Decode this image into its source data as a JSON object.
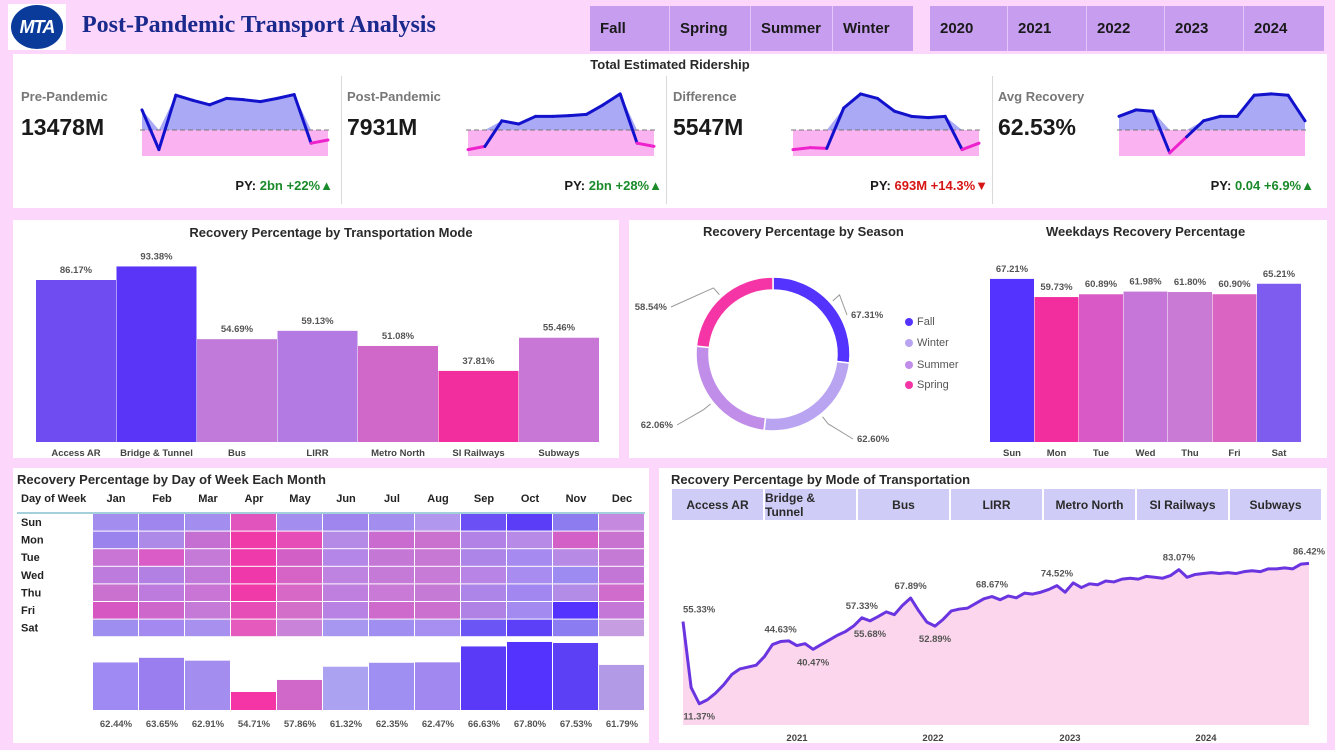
{
  "header": {
    "logo_text": "MTA",
    "title": "Post-Pandemic Transport Analysis"
  },
  "season_slicer": [
    "Fall",
    "Spring",
    "Summer",
    "Winter"
  ],
  "year_slicer": [
    "2020",
    "2021",
    "2022",
    "2023",
    "2024"
  ],
  "colors": {
    "blue": "#1212cc",
    "magenta": "#ee22cc",
    "violet": "#5533ff",
    "pink": "#f535a5",
    "up": "#1a8a2a",
    "down": "#d81515"
  },
  "kpi_section": {
    "title": "Total Estimated Ridership",
    "cards": [
      {
        "label": "Pre-Pandemic",
        "value": "13478M",
        "py_label": "PY:",
        "py_value": "2bn",
        "py_change": "+22%",
        "arrow": "▲",
        "direction": "up",
        "sparkline": [
          0.72,
          0.1,
          0.95,
          0.87,
          0.8,
          0.9,
          0.88,
          0.85,
          0.9,
          0.96,
          0.2,
          0.25
        ]
      },
      {
        "label": "Post-Pandemic",
        "value": "7931M",
        "py_label": "PY:",
        "py_value": "2bn",
        "py_change": "+28%",
        "arrow": "▲",
        "direction": "up",
        "sparkline": [
          0.1,
          0.15,
          0.55,
          0.5,
          0.62,
          0.62,
          0.63,
          0.65,
          0.8,
          0.97,
          0.2,
          0.15
        ]
      },
      {
        "label": "Difference",
        "value": "5547M",
        "py_label": "PY:",
        "py_value": "693M",
        "py_change": "+14.3%",
        "arrow": "▼",
        "direction": "down",
        "sparkline": [
          0.1,
          0.13,
          0.12,
          0.75,
          0.97,
          0.9,
          0.7,
          0.62,
          0.6,
          0.62,
          0.1,
          0.2
        ]
      },
      {
        "label": "Avg Recovery",
        "value": "62.53%",
        "py_label": "PY:",
        "py_value": "0.04",
        "py_change": "+6.9%",
        "arrow": "▲",
        "direction": "up",
        "sparkline": [
          0.62,
          0.72,
          0.7,
          0.05,
          0.3,
          0.55,
          0.62,
          0.62,
          0.95,
          0.97,
          0.95,
          0.55
        ]
      }
    ]
  },
  "chart_data": [
    {
      "id": "mode_bar",
      "type": "bar",
      "title": "Recovery Percentage by Transportation Mode",
      "categories": [
        "Access AR",
        "Bridge & Tunnel",
        "Bus",
        "LIRR",
        "Metro North",
        "SI Railways",
        "Subways"
      ],
      "values": [
        86.17,
        93.38,
        54.69,
        59.13,
        51.08,
        37.81,
        55.46
      ],
      "labels": [
        "86.17%",
        "93.38%",
        "54.69%",
        "59.13%",
        "51.08%",
        "37.81%",
        "55.46%"
      ],
      "colors": [
        "#6e4cf2",
        "#5a35f7",
        "#c17ad9",
        "#b47ae3",
        "#d068c9",
        "#f22d9d",
        "#c877d6"
      ],
      "ylim": [
        0,
        100
      ]
    },
    {
      "id": "season_donut",
      "type": "pie",
      "title": "Recovery Percentage by Season",
      "categories": [
        "Fall",
        "Winter",
        "Summer",
        "Spring"
      ],
      "values": [
        67.31,
        62.6,
        62.06,
        58.54
      ],
      "labels": [
        "67.31%",
        "62.60%",
        "62.06%",
        "58.54%"
      ],
      "colors": [
        "#5533ff",
        "#b9a4f2",
        "#c08de8",
        "#f535a5"
      ]
    },
    {
      "id": "weekday_bar",
      "type": "bar",
      "title": "Weekdays Recovery Percentage",
      "categories": [
        "Sun",
        "Mon",
        "Tue",
        "Wed",
        "Thu",
        "Fri",
        "Sat"
      ],
      "values": [
        67.21,
        59.73,
        60.89,
        61.98,
        61.8,
        60.9,
        65.21
      ],
      "labels": [
        "67.21%",
        "59.73%",
        "60.89%",
        "61.98%",
        "61.80%",
        "60.90%",
        "65.21%"
      ],
      "colors": [
        "#5533ff",
        "#f22d9d",
        "#d95ac6",
        "#c676d8",
        "#c97ad4",
        "#d964c2",
        "#7f5cf0"
      ],
      "ylim": [
        0,
        75
      ]
    },
    {
      "id": "month_heatmap",
      "type": "heatmap",
      "title": "Recovery Percentage by Day of Week Each Month",
      "corner_label": "Day of Week",
      "months": [
        "Jan",
        "Feb",
        "Mar",
        "Apr",
        "May",
        "Jun",
        "Jul",
        "Aug",
        "Sep",
        "Oct",
        "Nov",
        "Dec"
      ],
      "days": [
        "Sun",
        "Mon",
        "Tue",
        "Wed",
        "Thu",
        "Fri",
        "Sat"
      ],
      "cells": [
        [
          "#a38ef0",
          "#9f86ee",
          "#a38ef0",
          "#e154bd",
          "#a38ef0",
          "#9f86ee",
          "#a38ef0",
          "#b198ee",
          "#6a50f5",
          "#5b3cf7",
          "#8d7cf0",
          "#c58ae0"
        ],
        [
          "#9b83ee",
          "#ad8ae8",
          "#c56fd3",
          "#f03aa8",
          "#e64db6",
          "#b58ae6",
          "#c96bcf",
          "#ca70cf",
          "#b282e6",
          "#b88ae8",
          "#d260c6",
          "#c873d0"
        ],
        [
          "#c875d6",
          "#d95cc7",
          "#c67ad8",
          "#ef3aac",
          "#d25fc5",
          "#b486e8",
          "#c577d6",
          "#c777d4",
          "#ad84e8",
          "#a68af0",
          "#b78ae6",
          "#c57bd6"
        ],
        [
          "#bd7cdd",
          "#b27fe2",
          "#c17ad9",
          "#ef39ab",
          "#d564c6",
          "#be82e0",
          "#c67ad8",
          "#c77ad6",
          "#b884e6",
          "#a98cf0",
          "#9d8bf2",
          "#c476d6"
        ],
        [
          "#ca70cf",
          "#bd7cdd",
          "#c875d6",
          "#f03aa8",
          "#d868c6",
          "#bf7fdf",
          "#c97ad6",
          "#c57bd6",
          "#ad84e8",
          "#a287f0",
          "#b28ce6",
          "#d06ccb"
        ],
        [
          "#d757c2",
          "#cd67cc",
          "#c67ad8",
          "#e64db6",
          "#d36ec9",
          "#b882e4",
          "#ce6acb",
          "#cb70cf",
          "#b182e6",
          "#a28af0",
          "#5533ff",
          "#c477d6"
        ],
        [
          "#9e8ef0",
          "#a48af0",
          "#a890ee",
          "#e55bbd",
          "#c983d8",
          "#a897f0",
          "#a08ff0",
          "#a68ff0",
          "#6b55f5",
          "#5c40f7",
          "#8c7cf2",
          "#c59de0"
        ]
      ],
      "totals": [
        62.44,
        63.65,
        62.91,
        54.71,
        57.86,
        61.32,
        62.35,
        62.47,
        66.63,
        67.8,
        67.53,
        61.79
      ],
      "total_labels": [
        "62.44%",
        "63.65%",
        "62.91%",
        "54.71%",
        "57.86%",
        "61.32%",
        "62.35%",
        "62.47%",
        "66.63%",
        "67.80%",
        "67.53%",
        "61.79%"
      ],
      "total_colors": [
        "#9e8af2",
        "#9a7ef0",
        "#a38ef0",
        "#f535a5",
        "#d068c9",
        "#aba2f2",
        "#a08ff2",
        "#a088f0",
        "#5a3af7",
        "#5533ff",
        "#5c40f6",
        "#b29ae6"
      ],
      "ylim": [
        50,
        68
      ]
    },
    {
      "id": "mode_line",
      "type": "area",
      "title": "Recovery Percentage by Mode of Transportation",
      "x_labels": [
        "2021",
        "2022",
        "2023",
        "2024"
      ],
      "values": [
        55.33,
        20.0,
        11.37,
        13.5,
        17.0,
        21.5,
        27.0,
        30.0,
        31.0,
        32.0,
        36.5,
        43.0,
        44.63,
        45.0,
        42.5,
        43.5,
        40.47,
        43.0,
        45.5,
        48.0,
        50.0,
        53.0,
        57.33,
        55.68,
        58.0,
        60.5,
        59.0,
        64.0,
        67.89,
        61.0,
        55.0,
        52.89,
        56.5,
        61.0,
        62.0,
        62.5,
        65.0,
        67.5,
        68.67,
        67.0,
        69.0,
        68.0,
        70.5,
        70.0,
        71.0,
        72.5,
        74.52,
        71.0,
        76.0,
        73.5,
        75.5,
        75.0,
        77.0,
        76.5,
        78.0,
        78.5,
        78.0,
        79.5,
        79.0,
        78.5,
        80.0,
        83.07,
        79.0,
        80.5,
        81.0,
        81.5,
        81.0,
        81.5,
        81.0,
        82.0,
        82.5,
        82.0,
        83.5,
        83.5,
        84.0,
        83.5,
        86.0,
        86.42
      ],
      "callouts": [
        {
          "index": 0,
          "label": "55.33%",
          "pos": "above"
        },
        {
          "index": 2,
          "label": "11.37%",
          "pos": "below"
        },
        {
          "index": 12,
          "label": "44.63%",
          "pos": "above"
        },
        {
          "index": 16,
          "label": "40.47%",
          "pos": "below"
        },
        {
          "index": 22,
          "label": "57.33%",
          "pos": "above"
        },
        {
          "index": 23,
          "label": "55.68%",
          "pos": "below"
        },
        {
          "index": 28,
          "label": "67.89%",
          "pos": "above"
        },
        {
          "index": 31,
          "label": "52.89%",
          "pos": "below"
        },
        {
          "index": 38,
          "label": "68.67%",
          "pos": "above"
        },
        {
          "index": 46,
          "label": "74.52%",
          "pos": "above"
        },
        {
          "index": 61,
          "label": "83.07%",
          "pos": "above"
        },
        {
          "index": 77,
          "label": "86.42%",
          "pos": "above"
        }
      ],
      "ylim": [
        0,
        100
      ]
    }
  ],
  "mode_tabs": [
    "Access AR",
    "Bridge & Tunnel",
    "Bus",
    "LIRR",
    "Metro North",
    "SI Railways",
    "Subways"
  ]
}
